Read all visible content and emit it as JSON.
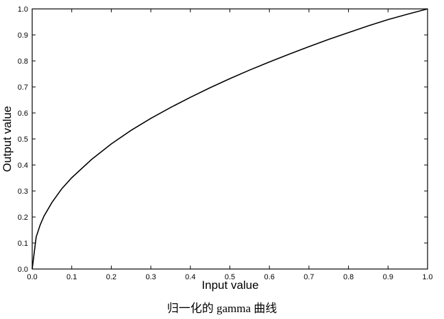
{
  "chart_data": {
    "type": "line",
    "title": "",
    "xlabel": "Input value",
    "ylabel": "Output value",
    "xlim": [
      0.0,
      1.0
    ],
    "ylim": [
      0.0,
      1.0
    ],
    "x_ticks": [
      "0.0",
      "0.1",
      "0.2",
      "0.3",
      "0.4",
      "0.5",
      "0.6",
      "0.7",
      "0.8",
      "0.9",
      "1.0"
    ],
    "y_ticks": [
      "0.0",
      "0.1",
      "0.2",
      "0.3",
      "0.4",
      "0.5",
      "0.6",
      "0.7",
      "0.8",
      "0.9",
      "1.0"
    ],
    "grid": false,
    "legend": "none",
    "line_color": "#000000",
    "series": [
      {
        "x": [
          0.0,
          0.01,
          0.02,
          0.03,
          0.05,
          0.075,
          0.1,
          0.15,
          0.2,
          0.25,
          0.3,
          0.35,
          0.4,
          0.45,
          0.5,
          0.55,
          0.6,
          0.65,
          0.7,
          0.75,
          0.8,
          0.85,
          0.9,
          0.95,
          1.0
        ],
        "y": [
          0.0,
          0.123,
          0.169,
          0.204,
          0.256,
          0.309,
          0.351,
          0.421,
          0.481,
          0.533,
          0.579,
          0.621,
          0.66,
          0.697,
          0.732,
          0.765,
          0.796,
          0.826,
          0.855,
          0.883,
          0.909,
          0.935,
          0.959,
          0.98,
          1.0
        ]
      }
    ]
  },
  "caption": "归一化的 gamma 曲线"
}
